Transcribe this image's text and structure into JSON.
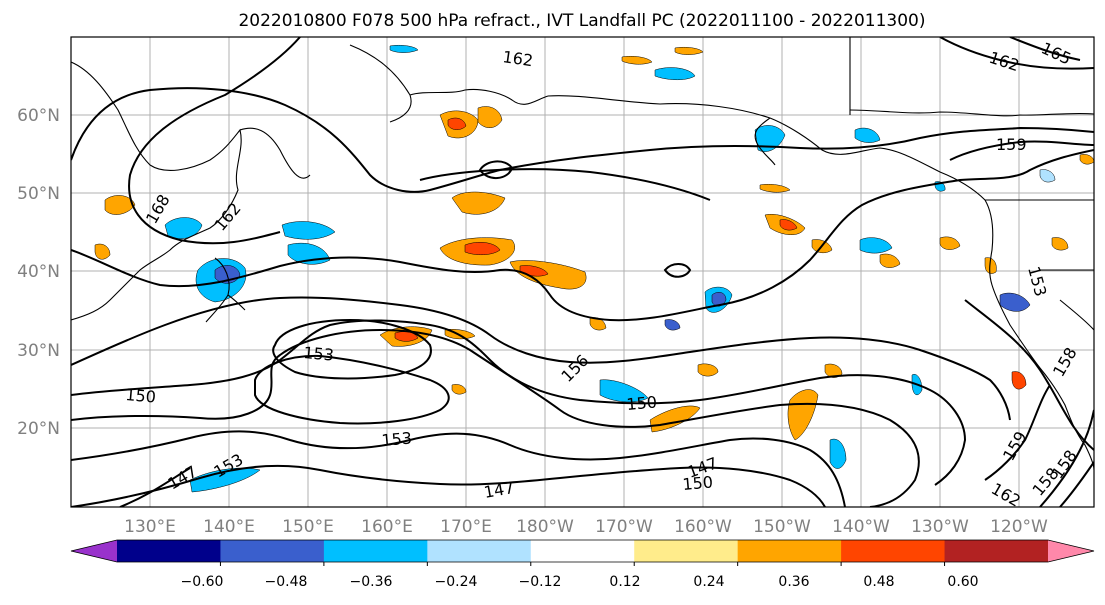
{
  "title": "2022010800 F078 500 hPa refract., IVT Landfall PC (2022011100 - 2022011300)",
  "lat_labels": [
    "60°N",
    "50°N",
    "40°N",
    "30°N",
    "20°N"
  ],
  "lon_labels": [
    "130°E",
    "140°E",
    "150°E",
    "160°E",
    "170°E",
    "180°W",
    "170°W",
    "160°W",
    "150°W",
    "140°W",
    "130°W",
    "120°W"
  ],
  "contour_labels": [
    "162",
    "162",
    "165",
    "159",
    "168",
    "162",
    "153",
    "153",
    "150",
    "156",
    "150",
    "153",
    "153",
    "147",
    "147",
    "150",
    "147",
    "159",
    "162",
    "158",
    "158",
    "158"
  ],
  "colorbar": {
    "ticks": [
      "−0.60",
      "−0.48",
      "−0.36",
      "−0.24",
      "−0.12",
      "0.12",
      "0.24",
      "0.36",
      "0.48",
      "0.60"
    ],
    "colors": [
      "#9932cc",
      "#00008b",
      "#3a5fcd",
      "#00bfff",
      "#b0e2ff",
      "#ffffff",
      "#ffec8b",
      "#ffa500",
      "#ff4500",
      "#b22222",
      "#ff88aa"
    ]
  }
}
